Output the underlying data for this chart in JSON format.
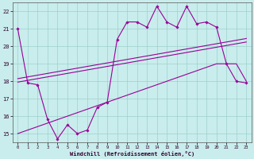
{
  "xlabel": "Windchill (Refroidissement éolien,°C)",
  "background_color": "#c8edec",
  "grid_color": "#9ecfcc",
  "line_color": "#990099",
  "x_hours": [
    0,
    1,
    2,
    3,
    4,
    5,
    6,
    7,
    8,
    9,
    10,
    11,
    12,
    13,
    14,
    15,
    16,
    17,
    18,
    19,
    20,
    21,
    22,
    23
  ],
  "y_temp": [
    21.0,
    17.9,
    17.8,
    15.8,
    14.7,
    15.5,
    15.0,
    15.2,
    16.5,
    16.8,
    20.4,
    21.4,
    21.4,
    21.1,
    22.3,
    21.4,
    21.1,
    22.3,
    21.3,
    21.4,
    21.1,
    19.0,
    18.0,
    17.9
  ],
  "y_line1": [
    17.95,
    18.05,
    18.15,
    18.25,
    18.35,
    18.45,
    18.55,
    18.65,
    18.75,
    18.85,
    18.95,
    19.05,
    19.15,
    19.25,
    19.35,
    19.45,
    19.55,
    19.65,
    19.75,
    19.85,
    19.95,
    20.05,
    20.15,
    20.25
  ],
  "y_line2": [
    18.15,
    18.25,
    18.35,
    18.45,
    18.55,
    18.65,
    18.75,
    18.85,
    18.95,
    19.05,
    19.15,
    19.25,
    19.35,
    19.45,
    19.55,
    19.65,
    19.75,
    19.85,
    19.95,
    20.05,
    20.15,
    20.25,
    20.35,
    20.45
  ],
  "y_line3": [
    15.0,
    15.2,
    15.4,
    15.6,
    15.8,
    16.0,
    16.2,
    16.4,
    16.6,
    16.8,
    17.0,
    17.2,
    17.4,
    17.6,
    17.8,
    18.0,
    18.2,
    18.4,
    18.6,
    18.8,
    19.0,
    19.0,
    19.0,
    18.0
  ],
  "xlim": [
    -0.5,
    23.5
  ],
  "ylim": [
    14.5,
    22.5
  ],
  "yticks": [
    15,
    16,
    17,
    18,
    19,
    20,
    21,
    22
  ],
  "xticks": [
    0,
    1,
    2,
    3,
    4,
    5,
    6,
    7,
    8,
    9,
    10,
    11,
    12,
    13,
    14,
    15,
    16,
    17,
    18,
    19,
    20,
    21,
    22,
    23
  ]
}
